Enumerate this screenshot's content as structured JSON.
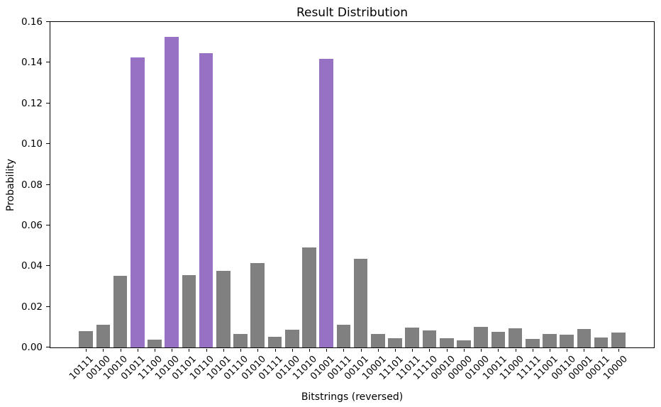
{
  "chart_data": {
    "type": "bar",
    "title": "Result Distribution",
    "xlabel": "Bitstrings (reversed)",
    "ylabel": "Probability",
    "ylim": [
      0,
      0.16
    ],
    "yticks": [
      "0.00",
      "0.02",
      "0.04",
      "0.06",
      "0.08",
      "0.10",
      "0.12",
      "0.14",
      "0.16"
    ],
    "grid": false,
    "legend": null,
    "bar_color": "#808080",
    "highlight_color": "#9771c4",
    "highlight_indices": [
      3,
      5,
      7,
      14
    ],
    "highlighted_categories": [
      "01011",
      "10100",
      "10110",
      "01001"
    ],
    "categories": [
      "10111",
      "00100",
      "10010",
      "01011",
      "11100",
      "10100",
      "01101",
      "10110",
      "10101",
      "01110",
      "01010",
      "01111",
      "01100",
      "11010",
      "01001",
      "00111",
      "00101",
      "10001",
      "11101",
      "11011",
      "11110",
      "00010",
      "00000",
      "01000",
      "10011",
      "11000",
      "11111",
      "11001",
      "00110",
      "00001",
      "00011",
      "10000"
    ],
    "values": [
      0.0081,
      0.011,
      0.0352,
      0.1426,
      0.0038,
      0.1527,
      0.0357,
      0.1447,
      0.0375,
      0.0068,
      0.0414,
      0.0053,
      0.0086,
      0.0493,
      0.142,
      0.011,
      0.0437,
      0.0067,
      0.0047,
      0.0099,
      0.0082,
      0.0045,
      0.0035,
      0.01,
      0.0076,
      0.0095,
      0.0041,
      0.0068,
      0.0063,
      0.0089,
      0.0049,
      0.0072
    ]
  }
}
